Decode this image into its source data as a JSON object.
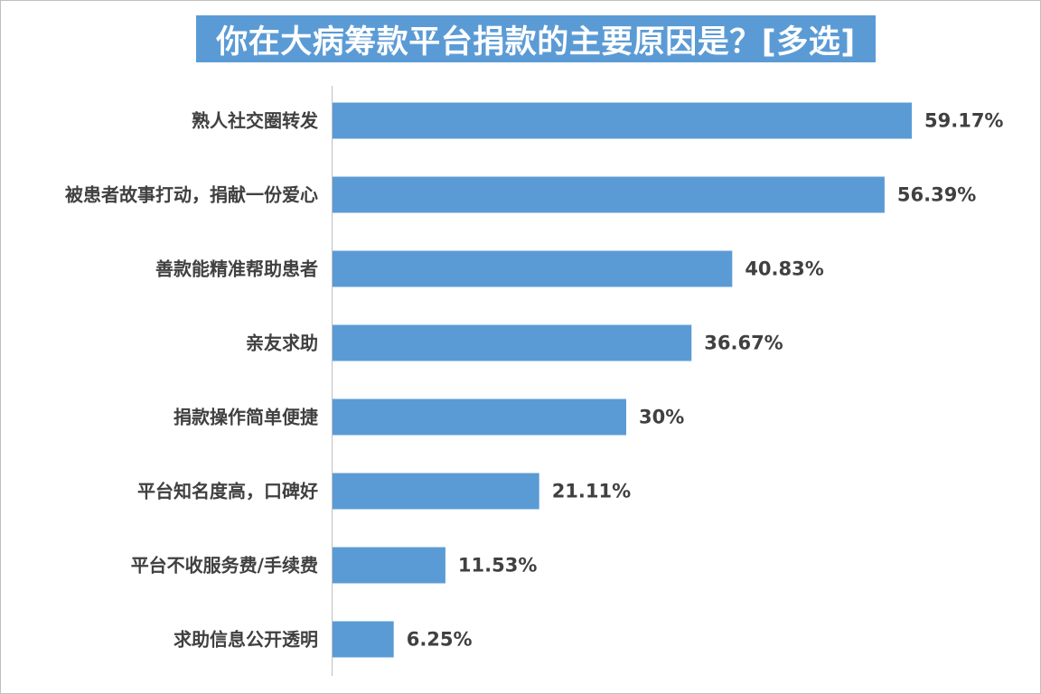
{
  "chart_data": {
    "type": "bar",
    "orientation": "horizontal",
    "title": "你在大病筹款平台捐款的主要原因是？[多选]",
    "categories": [
      "熟人社交圈转发",
      "被患者故事打动，捐献一份爱心",
      "善款能精准帮助患者",
      "亲友求助",
      "捐款操作简单便捷",
      "平台知名度高，口碑好",
      "平台不收服务费/手续费",
      "求助信息公开透明"
    ],
    "values": [
      59.17,
      56.39,
      40.83,
      36.67,
      30,
      21.11,
      11.53,
      6.25
    ],
    "value_labels": [
      "59.17%",
      "56.39%",
      "40.83%",
      "36.67%",
      "30%",
      "21.11%",
      "11.53%",
      "6.25%"
    ],
    "xlim": [
      0,
      70
    ],
    "unit": "%",
    "grid": false,
    "legend": "none",
    "colors": {
      "bar": "#5b9bd5",
      "title_bg": "#5b9bd5",
      "title_text": "#ffffff",
      "label_text": "#404040",
      "axis": "#bfbfbf"
    }
  }
}
